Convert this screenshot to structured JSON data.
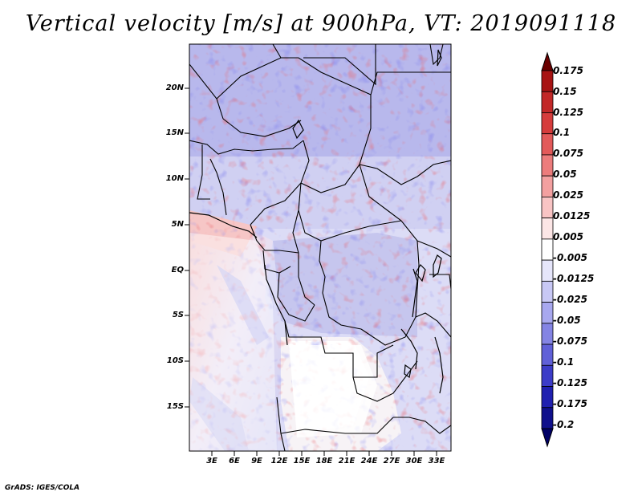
{
  "title": "Vertical velocity [m/s] at 900hPa, VT: 2019091118",
  "credit": "GrADS: IGES/COLA",
  "lat_labels": [
    "20N",
    "15N",
    "10N",
    "5N",
    "EQ",
    "5S",
    "10S",
    "15S"
  ],
  "lon_labels": [
    "3E",
    "6E",
    "9E",
    "12E",
    "15E",
    "18E",
    "21E",
    "24E",
    "27E",
    "30E",
    "33E"
  ],
  "colorbar": {
    "labels": [
      "0.175",
      "0.15",
      "0.125",
      "0.1",
      "0.075",
      "0.05",
      "0.025",
      "0.0125",
      "0.005",
      "-0.005",
      "-0.0125",
      "-0.025",
      "-0.05",
      "-0.075",
      "-0.1",
      "-0.125",
      "-0.175",
      "-0.2"
    ],
    "colors": [
      "#6a0000",
      "#a81414",
      "#c22828",
      "#d63c3c",
      "#e35a5a",
      "#ec7c7c",
      "#f3a0a0",
      "#f8c4c4",
      "#fce6e6",
      "#ffffff",
      "#e6e6fb",
      "#c8c8f5",
      "#a8a8ef",
      "#8484e4",
      "#6060d8",
      "#3c3cc8",
      "#2020b0",
      "#10108c",
      "#000066"
    ]
  },
  "map_extent": {
    "lon_min": 0,
    "lon_max": 35,
    "lat_min": -20,
    "lat_max": 25
  }
}
